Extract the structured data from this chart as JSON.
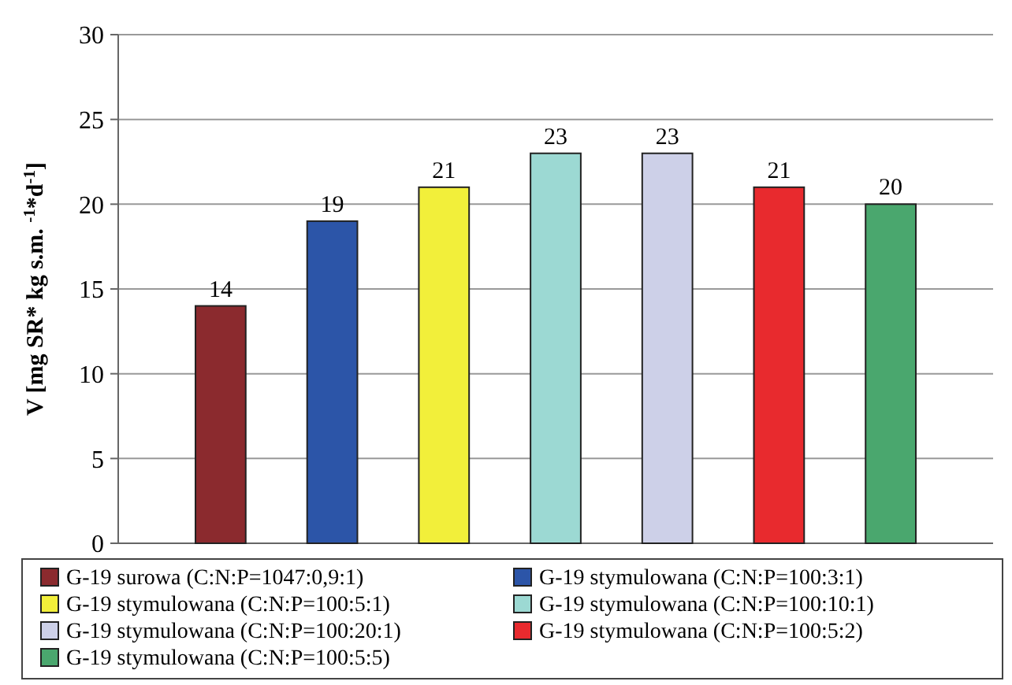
{
  "chart_data": {
    "type": "bar",
    "ylabel": "V [mg SR* kg s.m. $^{-1}$*d$^{-1}$]",
    "categories": [
      null
    ],
    "series": [
      {
        "name": "G-19 surowa (C:N:P=1047:0,9:1)",
        "color": "#8b2a2e",
        "values": [
          14
        ]
      },
      {
        "name": "G-19 stymulowana (C:N:P=100:3:1)",
        "color": "#2c55a8",
        "values": [
          19
        ]
      },
      {
        "name": "G-19 stymulowana (C:N:P=100:5:1)",
        "color": "#f2ef3a",
        "values": [
          21
        ]
      },
      {
        "name": "G-19 stymulowana (C:N:P=100:10:1)",
        "color": "#9cd9d3",
        "values": [
          23
        ]
      },
      {
        "name": "G-19 stymulowana (C:N:P=100:20:1)",
        "color": "#cdd0e8",
        "values": [
          23
        ]
      },
      {
        "name": "G-19 stymulowana (C:N:P=100:5:2)",
        "color": "#e82a2e",
        "values": [
          21
        ]
      },
      {
        "name": "G-19 stymulowana (C:N:P=100:5:5)",
        "color": "#4aa76e",
        "values": [
          20
        ]
      }
    ],
    "ylim": [
      0,
      30
    ],
    "yticks": [
      0,
      5,
      10,
      15,
      20,
      25,
      30
    ],
    "grid": "y",
    "data_labels": true,
    "legend": "bottom"
  }
}
